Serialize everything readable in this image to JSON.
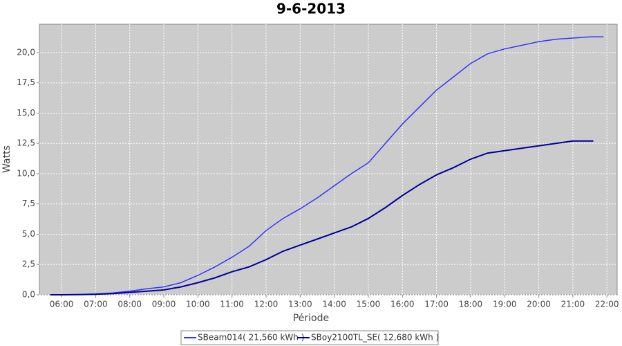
{
  "chart_data": {
    "type": "line",
    "title": "9-6-2013",
    "xlabel": "Période",
    "ylabel": "Watts",
    "grid": true,
    "legend": "bottom",
    "xlim": [
      5.35,
      22.3
    ],
    "xticks": [
      {
        "value": 6,
        "label": "06:00"
      },
      {
        "value": 7,
        "label": "07:00"
      },
      {
        "value": 8,
        "label": "08:00"
      },
      {
        "value": 9,
        "label": "09:00"
      },
      {
        "value": 10,
        "label": "10:00"
      },
      {
        "value": 11,
        "label": "11:00"
      },
      {
        "value": 12,
        "label": "12:00"
      },
      {
        "value": 13,
        "label": "13:00"
      },
      {
        "value": 14,
        "label": "14:00"
      },
      {
        "value": 15,
        "label": "15:00"
      },
      {
        "value": 16,
        "label": "16:00"
      },
      {
        "value": 17,
        "label": "17:00"
      },
      {
        "value": 18,
        "label": "18:00"
      },
      {
        "value": 19,
        "label": "19:00"
      },
      {
        "value": 20,
        "label": "20:00"
      },
      {
        "value": 21,
        "label": "21:00"
      },
      {
        "value": 22,
        "label": "22:00"
      }
    ],
    "ylim": [
      0,
      22.34
    ],
    "yticks": [
      {
        "value": 0,
        "label": "0,0"
      },
      {
        "value": 2.5,
        "label": "2,5"
      },
      {
        "value": 5,
        "label": "5,0"
      },
      {
        "value": 7.5,
        "label": "7,5"
      },
      {
        "value": 10,
        "label": "10,0"
      },
      {
        "value": 12.5,
        "label": "12,5"
      },
      {
        "value": 15,
        "label": "15,0"
      },
      {
        "value": 17.5,
        "label": "17,5"
      },
      {
        "value": 20,
        "label": "20,0"
      }
    ],
    "series": [
      {
        "name": "SBeam014( 21,560 kWh )",
        "color": "#3333ff",
        "x": [
          5.67,
          6,
          6.5,
          7,
          7.5,
          8,
          8.5,
          9,
          9.5,
          10,
          10.5,
          11,
          11.5,
          12,
          12.5,
          13,
          13.5,
          14,
          14.5,
          15,
          15.5,
          16,
          16.5,
          17,
          17.5,
          18,
          18.5,
          19,
          19.5,
          20,
          20.5,
          21,
          21.5,
          21.9
        ],
        "values": [
          0,
          0,
          0.02,
          0.07,
          0.15,
          0.3,
          0.5,
          0.65,
          1.0,
          1.6,
          2.3,
          3.1,
          4.0,
          5.3,
          6.3,
          7.1,
          8.0,
          9.0,
          10.0,
          10.9,
          12.5,
          14.1,
          15.5,
          16.9,
          18.0,
          19.1,
          19.9,
          20.3,
          20.6,
          20.9,
          21.1,
          21.2,
          21.3,
          21.3
        ]
      },
      {
        "name": "SBoy2100TL_SE( 12,680 kWh )",
        "color": "#000099",
        "x": [
          5.67,
          6,
          6.5,
          7,
          7.5,
          8,
          8.5,
          9,
          9.5,
          10,
          10.5,
          11,
          11.5,
          12,
          12.5,
          13,
          13.5,
          14,
          14.5,
          15,
          15.5,
          16,
          16.5,
          17,
          17.5,
          18,
          18.5,
          19,
          19.5,
          20,
          20.5,
          21,
          21.6
        ],
        "values": [
          0,
          0,
          0.01,
          0.04,
          0.1,
          0.2,
          0.3,
          0.4,
          0.65,
          1.0,
          1.4,
          1.9,
          2.3,
          2.9,
          3.6,
          4.1,
          4.6,
          5.1,
          5.6,
          6.3,
          7.2,
          8.2,
          9.1,
          9.9,
          10.5,
          11.2,
          11.7,
          11.9,
          12.1,
          12.3,
          12.5,
          12.7,
          12.7
        ]
      }
    ]
  }
}
